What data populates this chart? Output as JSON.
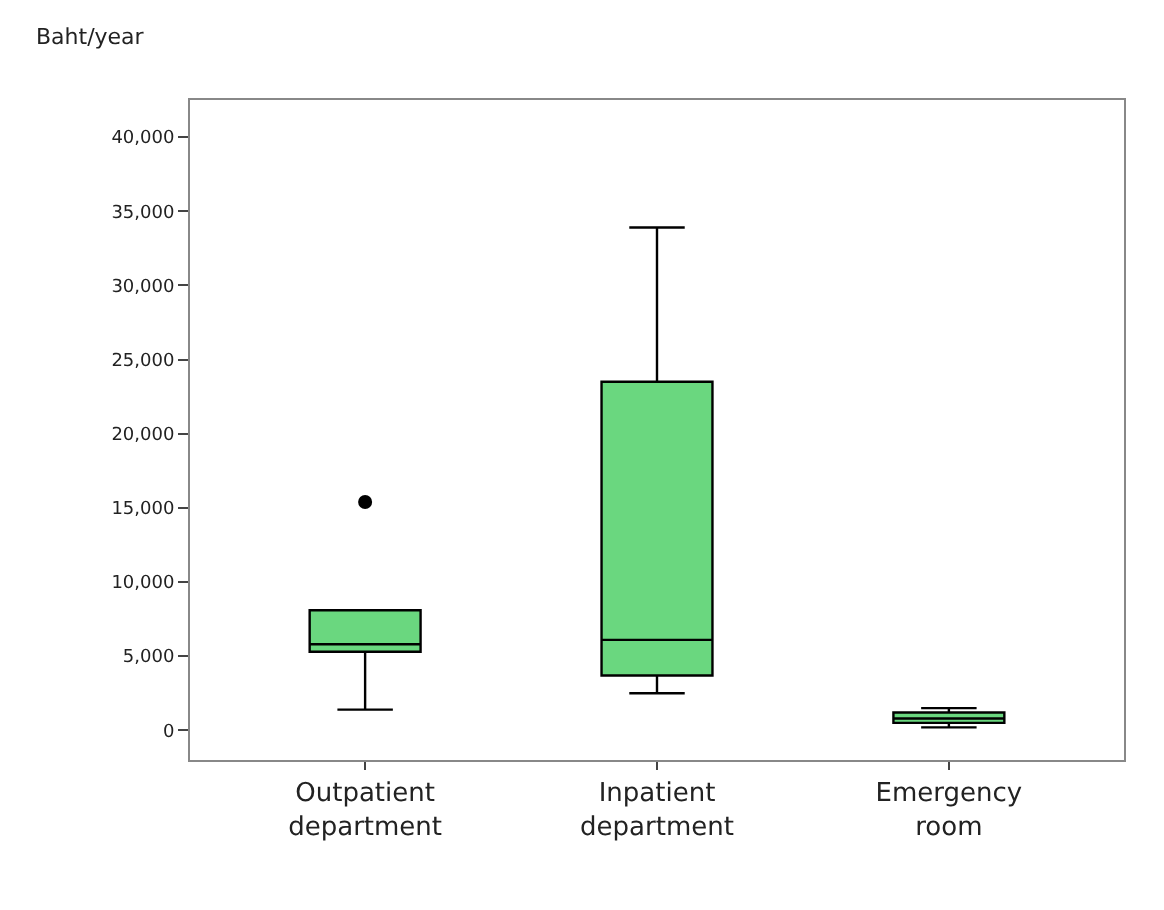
{
  "chart_data": {
    "type": "box",
    "ylabel": "Baht/year",
    "categories": [
      "Outpatient department",
      "Inpatient department",
      "Emergency room"
    ],
    "color": "#6ad77f",
    "boxes": [
      {
        "low": 1400,
        "q1": 5300,
        "median": 5800,
        "q3": 8100,
        "high": 8100,
        "outliers": [
          15400
        ]
      },
      {
        "low": 2500,
        "q1": 3700,
        "median": 6100,
        "q3": 23500,
        "high": 33900
      },
      {
        "low": 200,
        "q1": 500,
        "median": 800,
        "q3": 1200,
        "high": 1500
      }
    ],
    "ylim": [
      -2000,
      42500
    ],
    "yticks": [
      {
        "value": 0,
        "label": "0"
      },
      {
        "value": 5000,
        "label": "5,000"
      },
      {
        "value": 10000,
        "label": "10,000"
      },
      {
        "value": 15000,
        "label": "15,000"
      },
      {
        "value": 20000,
        "label": "20,000"
      },
      {
        "value": 25000,
        "label": "25,000"
      },
      {
        "value": 30000,
        "label": "30,000"
      },
      {
        "value": 35000,
        "label": "35,000"
      },
      {
        "value": 40000,
        "label": "40,000"
      }
    ]
  }
}
